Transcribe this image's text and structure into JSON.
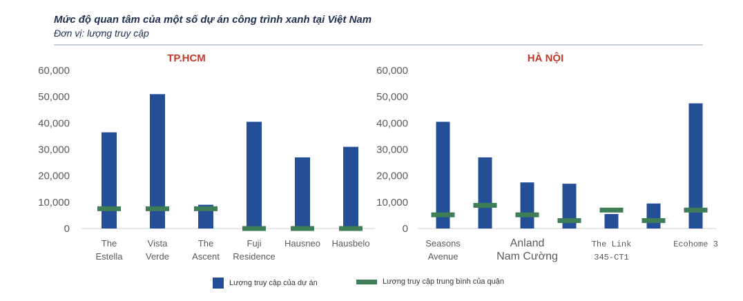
{
  "title": "Mức độ quan tâm của một số dự án công trình xanh tại Việt Nam",
  "subtitle": "Đơn vị: lượng truy cập",
  "colors": {
    "bar": "#244f96",
    "avg": "#3e7d55",
    "panel_title": "#c0392b"
  },
  "legend": {
    "bar_label": "Lượng truy cập của dự án",
    "avg_label": "Lượng truy cập trung bình của quận"
  },
  "chart_data": [
    {
      "type": "bar",
      "title": "TP.HCM",
      "ylim": [
        0,
        60000
      ],
      "yticks": [
        "60,000",
        "50,000",
        "40,000",
        "30,000",
        "20,000",
        "10,000",
        "0"
      ],
      "categories": [
        [
          "The",
          "Estella"
        ],
        [
          "Vista",
          "Verde"
        ],
        [
          "The",
          "Ascent"
        ],
        [
          "Fuji",
          "Residence"
        ],
        [
          "Hausneo"
        ],
        [
          "Hausbelo"
        ]
      ],
      "series": [
        {
          "name": "Lượng truy cập của dự án",
          "kind": "bar",
          "values": [
            36500,
            51000,
            9000,
            40500,
            27000,
            31000
          ]
        },
        {
          "name": "Lượng truy cập trung bình của quận",
          "kind": "marker",
          "values": [
            7500,
            7500,
            7500,
            0,
            0,
            0
          ]
        }
      ]
    },
    {
      "type": "bar",
      "title": "HÀ NỘI",
      "ylim": [
        0,
        60000
      ],
      "yticks": [
        "60,000",
        "50,000",
        "40,000",
        "30,000",
        "20,000",
        "10,000",
        "0"
      ],
      "categories": [
        [
          "Seasons",
          "Avenue"
        ],
        [],
        [
          "Anland",
          "Nam Cường"
        ],
        [],
        [
          "The Link",
          "345-CT1"
        ],
        [],
        [
          "Ecohome 3"
        ]
      ],
      "series": [
        {
          "name": "Lượng truy cập của dự án",
          "kind": "bar",
          "values": [
            40500,
            27000,
            17500,
            17000,
            5500,
            9500,
            47500
          ]
        },
        {
          "name": "Lượng truy cập trung bình của quận",
          "kind": "marker",
          "values": [
            5200,
            8800,
            5200,
            3000,
            7000,
            3000,
            7000
          ]
        }
      ]
    }
  ]
}
